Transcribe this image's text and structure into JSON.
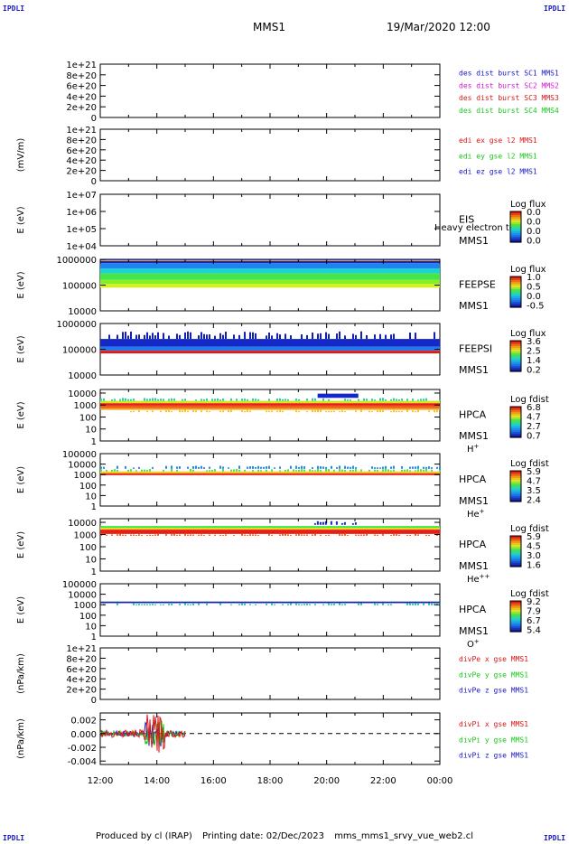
{
  "corner_label": "IPDLI",
  "header": {
    "spacecraft": "MMS1",
    "datetime": "19/Mar/2020 12:00"
  },
  "footer": {
    "produced_by": "Produced by cl (IRAP)",
    "printing_date": "Printing date: 02/Dec/2023",
    "script_name": "mms_mms1_srvy_vue_web2.cl"
  },
  "colors": {
    "c_blue": "#1818c8",
    "c_magenta": "#d018d0",
    "c_red": "#d81818",
    "c_green": "#18c818"
  },
  "chart_data": {
    "type": "multi-panel time series and spectrograms",
    "x_axis": {
      "start": "12:00",
      "end": "00:00",
      "tick_labels": [
        "12:00",
        "14:00",
        "16:00",
        "18:00",
        "20:00",
        "22:00",
        "00:00"
      ]
    },
    "panels": [
      {
        "id": "dist",
        "kind": "line",
        "ylabel": "",
        "ticks": [
          "1e+21",
          "8e+20",
          "6e+20",
          "4e+20",
          "2e+20",
          "0"
        ],
        "tick_values": [
          1e+21,
          8e+20,
          6e+20,
          4e+20,
          2e+20,
          0
        ],
        "ylim": [
          0,
          1e+21
        ],
        "zero_dashed": true,
        "legend": [
          {
            "text": "des dist burst SC1 MMS1",
            "color": "#1818c8"
          },
          {
            "text": "des dist burst SC2 MMS2",
            "color": "#d018d0"
          },
          {
            "text": "des dist burst SC3 MMS3",
            "color": "#d81818"
          },
          {
            "text": "des dist burst SC4 MMS4",
            "color": "#18c818"
          }
        ]
      },
      {
        "id": "edi",
        "kind": "line",
        "ylabel": "(mV/m)",
        "ticks": [
          "1e+21",
          "8e+20",
          "6e+20",
          "4e+20",
          "2e+20",
          "0"
        ],
        "tick_values": [
          1e+21,
          8e+20,
          6e+20,
          4e+20,
          2e+20,
          0
        ],
        "ylim": [
          0,
          1e+21
        ],
        "zero_dashed": true,
        "legend": [
          {
            "text": "edi ex gse l2 MMS1",
            "color": "#d81818"
          },
          {
            "text": "edi ey gse l2 MMS1",
            "color": "#18c818"
          },
          {
            "text": "edi ez gse l2 MMS1",
            "color": "#1818c8"
          }
        ]
      },
      {
        "id": "eis",
        "kind": "spectrogram",
        "ylabel": "E (eV)",
        "ticks": [
          "1e+07",
          "1e+06",
          "1e+05",
          "1e+04"
        ],
        "log_range": [
          4,
          7
        ],
        "tick_logs": [
          7,
          6,
          5,
          4
        ],
        "labels": [
          "EIS",
          "MMS1"
        ],
        "overlay": "Heavy electron to",
        "cb_title": "Log flux",
        "cb_ticks": [
          "0.0",
          "0.0",
          "0.0",
          "0.0"
        ],
        "cmap": "rainbow",
        "bands": []
      },
      {
        "id": "feepse",
        "kind": "spectrogram",
        "ylabel": "E (eV)",
        "ticks": [
          "1000000",
          "100000",
          "10000"
        ],
        "log_range": [
          4,
          6
        ],
        "tick_logs": [
          6,
          5,
          4
        ],
        "labels": [
          "FEEPSE",
          "MMS1"
        ],
        "cb_title": "Log flux",
        "cb_ticks": [
          "1.0",
          "0.5",
          "0.0",
          "-0.5"
        ],
        "cmap": "rainbow",
        "bands": [
          {
            "t0": 0,
            "t1": 1,
            "lo": 5.85,
            "hi": 6.0,
            "color": "#1428c8"
          },
          {
            "t0": 0,
            "t1": 1,
            "lo": 5.65,
            "hi": 5.85,
            "color": "#1e82f0"
          },
          {
            "t0": 0,
            "t1": 1,
            "lo": 5.45,
            "hi": 5.65,
            "color": "#1ed2d2"
          },
          {
            "t0": 0,
            "t1": 1,
            "lo": 5.2,
            "hi": 5.45,
            "color": "#46e646"
          },
          {
            "t0": 0,
            "t1": 1,
            "lo": 5.05,
            "hi": 5.2,
            "color": "#82f028"
          },
          {
            "t0": 0,
            "t1": 1,
            "lo": 4.9,
            "hi": 5.05,
            "color": "#d2f01e"
          },
          {
            "t0": 0,
            "t1": 1,
            "lo": 5.93,
            "hi": 5.97,
            "color": "#f0a01e"
          }
        ]
      },
      {
        "id": "feepsi",
        "kind": "spectrogram",
        "ylabel": "E (eV)",
        "ticks": [
          "1000000",
          "100000",
          "10000"
        ],
        "log_range": [
          4,
          6
        ],
        "tick_logs": [
          6,
          5,
          4
        ],
        "labels": [
          "FEEPSI",
          "MMS1"
        ],
        "cb_title": "Log flux",
        "cb_ticks": [
          "3.6",
          "2.5",
          "1.4",
          "0.2"
        ],
        "cmap": "rainbow",
        "bands": [
          {
            "t0": 0,
            "t1": 1,
            "lo": 5.4,
            "hi": 5.7,
            "color": "#1420b4",
            "speckle": true
          },
          {
            "t0": 0,
            "t1": 1,
            "lo": 5.1,
            "hi": 5.4,
            "color": "#1428c8"
          },
          {
            "t0": 0,
            "t1": 1,
            "lo": 4.95,
            "hi": 5.1,
            "color": "#1e78f0"
          },
          {
            "t0": 0,
            "t1": 1,
            "lo": 4.88,
            "hi": 4.95,
            "color": "#e61e1e"
          },
          {
            "t0": 0,
            "t1": 1,
            "lo": 4.84,
            "hi": 4.88,
            "color": "#c81414"
          }
        ]
      },
      {
        "id": "hpca_h",
        "kind": "spectrogram",
        "ylabel": "E (eV)",
        "ticks": [
          "10000",
          "1000",
          "100",
          "10",
          "1"
        ],
        "log_range": [
          0,
          4.3
        ],
        "tick_logs": [
          4,
          3,
          2,
          1,
          0
        ],
        "labels": [
          "HPCA",
          "MMS1"
        ],
        "species": "H",
        "species_sup": "+",
        "cb_title": "Log fdist",
        "cb_ticks": [
          "6.8",
          "4.7",
          "2.7",
          "0.7"
        ],
        "cmap": "rainbow",
        "bands": [
          {
            "t0": 0,
            "t1": 1,
            "lo": 3.35,
            "hi": 3.6,
            "color": "#1ed2b4",
            "speckle": true
          },
          {
            "t0": 0,
            "t1": 1,
            "lo": 3.15,
            "hi": 3.35,
            "color": "#d2e61e"
          },
          {
            "t0": 0,
            "t1": 1,
            "lo": 2.95,
            "hi": 3.15,
            "color": "#e61e14"
          },
          {
            "t0": 0,
            "t1": 1,
            "lo": 2.75,
            "hi": 2.95,
            "color": "#f05a14"
          },
          {
            "t0": 0,
            "t1": 1,
            "lo": 2.6,
            "hi": 2.75,
            "color": "#f0a01e"
          },
          {
            "t0": 0,
            "t1": 1,
            "lo": 2.4,
            "hi": 2.6,
            "color": "#f0c828",
            "speckle": true
          },
          {
            "t0": 0.64,
            "t1": 0.76,
            "lo": 3.6,
            "hi": 3.95,
            "color": "#1428c8"
          }
        ]
      },
      {
        "id": "hpca_he",
        "kind": "spectrogram",
        "ylabel": "E (eV)",
        "ticks": [
          "100000",
          "10000",
          "1000",
          "100",
          "10",
          "1"
        ],
        "log_range": [
          0,
          5
        ],
        "tick_logs": [
          5,
          4,
          3,
          2,
          1,
          0
        ],
        "labels": [
          "HPCA",
          "MMS1"
        ],
        "species": "He",
        "species_sup": "+",
        "cb_title": "Log fdist",
        "cb_ticks": [
          "5.9",
          "4.7",
          "3.5",
          "2.4"
        ],
        "cmap": "rainbow",
        "bands": [
          {
            "t0": 0,
            "t1": 1,
            "lo": 3.55,
            "hi": 3.85,
            "color": "#1e8cf0",
            "speckle": true
          },
          {
            "t0": 0,
            "t1": 1,
            "lo": 3.3,
            "hi": 3.55,
            "color": "#46e646",
            "speckle": true
          },
          {
            "t0": 0,
            "t1": 1,
            "lo": 3.12,
            "hi": 3.3,
            "color": "#f0d21e"
          },
          {
            "t0": 0,
            "t1": 1,
            "lo": 2.95,
            "hi": 3.12,
            "color": "#e61e14"
          }
        ]
      },
      {
        "id": "hpca_hepp",
        "kind": "spectrogram",
        "ylabel": "E (eV)",
        "ticks": [
          "10000",
          "1000",
          "100",
          "10",
          "1"
        ],
        "log_range": [
          0,
          4.3
        ],
        "tick_logs": [
          4,
          3,
          2,
          1,
          0
        ],
        "labels": [
          "HPCA",
          "MMS1"
        ],
        "species": "He",
        "species_sup": "++",
        "cb_title": "Log fdist",
        "cb_ticks": [
          "5.9",
          "4.5",
          "3.0",
          "1.6"
        ],
        "cmap": "rainbow",
        "bands": [
          {
            "t0": 0,
            "t1": 1,
            "lo": 3.55,
            "hi": 3.7,
            "color": "#46e646"
          },
          {
            "t0": 0,
            "t1": 1,
            "lo": 3.4,
            "hi": 3.55,
            "color": "#f0d21e"
          },
          {
            "t0": 0,
            "t1": 1,
            "lo": 3.05,
            "hi": 3.4,
            "color": "#e61e14"
          },
          {
            "t0": 0,
            "t1": 1,
            "lo": 2.9,
            "hi": 3.05,
            "color": "#f05a14",
            "speckle": true
          },
          {
            "t0": 0.63,
            "t1": 0.76,
            "lo": 3.8,
            "hi": 4.1,
            "color": "#1428c8",
            "speckle": true
          }
        ]
      },
      {
        "id": "hpca_o",
        "kind": "spectrogram",
        "ylabel": "E (eV)",
        "ticks": [
          "100000",
          "10000",
          "1000",
          "100",
          "10",
          "1"
        ],
        "log_range": [
          0,
          5
        ],
        "tick_logs": [
          5,
          4,
          3,
          2,
          1,
          0
        ],
        "labels": [
          "HPCA",
          "MMS1"
        ],
        "species": "O",
        "species_sup": "+",
        "cb_title": "Log fdist",
        "cb_ticks": [
          "9.2",
          "7.9",
          "6.7",
          "5.4"
        ],
        "cmap": "rainbow",
        "bands": [
          {
            "t0": 0,
            "t1": 1,
            "lo": 3.15,
            "hi": 3.3,
            "color": "#1428a0"
          },
          {
            "t0": 0,
            "t1": 1,
            "lo": 2.95,
            "hi": 3.15,
            "color": "#1ec8b4",
            "speckle": true
          }
        ]
      },
      {
        "id": "divpe",
        "kind": "line",
        "ylabel": "(nPa/km)",
        "ticks": [
          "1e+21",
          "8e+20",
          "6e+20",
          "4e+20",
          "2e+20",
          "0"
        ],
        "tick_values": [
          1e+21,
          8e+20,
          6e+20,
          4e+20,
          2e+20,
          0
        ],
        "ylim": [
          0,
          1e+21
        ],
        "zero_dashed": true,
        "legend": [
          {
            "text": "divPe x gse MMS1",
            "color": "#d81818"
          },
          {
            "text": "divPe y gse MMS1",
            "color": "#18c818"
          },
          {
            "text": "divPe z gse MMS1",
            "color": "#1818c8"
          }
        ]
      },
      {
        "id": "divpi",
        "kind": "line",
        "ylabel": "(nPa/km)",
        "ticks": [
          "0.002",
          "0.000",
          "-0.002",
          "-0.004"
        ],
        "tick_values": [
          0.002,
          0.0,
          -0.002,
          -0.004
        ],
        "ylim": [
          -0.0045,
          0.003
        ],
        "zero_dashed": true,
        "legend": [
          {
            "text": "divPi x gse MMS1",
            "color": "#d81818"
          },
          {
            "text": "divPi y gse MMS1",
            "color": "#18c818"
          },
          {
            "text": "divPi z gse MMS1",
            "color": "#1818c8"
          }
        ],
        "series_extent": [
          0,
          0.25
        ]
      }
    ]
  }
}
